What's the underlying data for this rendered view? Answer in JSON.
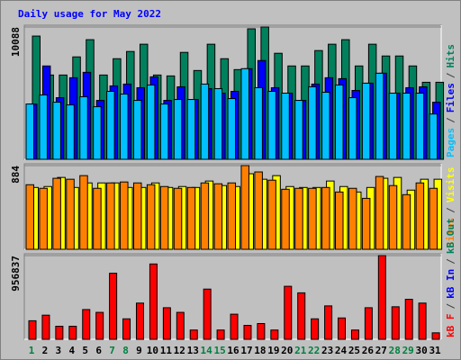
{
  "chart_data": [
    {
      "type": "bar",
      "title": "Daily usage for May 2022",
      "title_color": "#0000ff",
      "categories": [
        "1",
        "2",
        "3",
        "4",
        "5",
        "6",
        "7",
        "8",
        "9",
        "10",
        "11",
        "12",
        "13",
        "14",
        "15",
        "16",
        "17",
        "18",
        "19",
        "20",
        "21",
        "22",
        "23",
        "24",
        "25",
        "26",
        "27",
        "28",
        "29",
        "30",
        "31"
      ],
      "category_color": "#000000",
      "highlight_color": "#008040",
      "highlight_indices": [
        0,
        6,
        7,
        13,
        14,
        20,
        21,
        27,
        28
      ],
      "legend_separator": "/",
      "ylim": [
        0,
        10088
      ],
      "yticks": [
        10088
      ],
      "series": [
        {
          "name": "Hits",
          "color": "#00805c",
          "values": [
            9397,
            6426,
            6426,
            7808,
            9121,
            6426,
            7670,
            8222,
            8775,
            6426,
            6357,
            8153,
            6771,
            8775,
            7670,
            6840,
            9950,
            10088,
            8084,
            7117,
            7117,
            8291,
            8775,
            9121,
            7117,
            8775,
            7877,
            7877,
            7117,
            5873,
            5873
          ]
        },
        {
          "name": "Files",
          "color": "#0000ff",
          "values": [
            4215,
            7117,
            4698,
            6219,
            6633,
            4491,
            5597,
            5735,
            5459,
            6288,
            4491,
            5528,
            4560,
            5390,
            5044,
            5182,
            6910,
            7532,
            5459,
            5044,
            4491,
            5735,
            6219,
            6150,
            5251,
            5804,
            6564,
            5044,
            5459,
            5528,
            4353
          ]
        },
        {
          "name": "Pages",
          "color": "#00c0ff",
          "values": [
            4215,
            4905,
            4353,
            4146,
            4767,
            4008,
            5182,
            4974,
            4491,
            5666,
            4215,
            4560,
            4560,
            5735,
            5390,
            4629,
            6910,
            5459,
            5182,
            5044,
            4491,
            5528,
            5113,
            5666,
            4698,
            5804,
            6564,
            5044,
            5044,
            5044,
            3455
          ]
        }
      ]
    },
    {
      "type": "bar",
      "ylim": [
        0,
        884
      ],
      "yticks": [
        884
      ],
      "series": [
        {
          "name": "Visits",
          "color": "#ffff00",
          "values": [
            653,
            663,
            759,
            653,
            701,
            701,
            701,
            653,
            653,
            701,
            653,
            663,
            653,
            721,
            673,
            663,
            798,
            740,
            778,
            663,
            653,
            653,
            721,
            663,
            605,
            653,
            750,
            759,
            625,
            740,
            740
          ]
        },
        {
          "name": "Sites",
          "color": "#ff8000",
          "values": [
            682,
            644,
            750,
            740,
            778,
            644,
            701,
            711,
            701,
            682,
            663,
            644,
            653,
            701,
            692,
            701,
            884,
            817,
            730,
            634,
            644,
            644,
            653,
            605,
            644,
            538,
            769,
            673,
            577,
            701,
            644
          ]
        }
      ]
    },
    {
      "type": "bar",
      "ylim": [
        0,
        956837
      ],
      "yticks": [
        956837
      ],
      "series": [
        {
          "name": "kB F",
          "color": "#ff0000",
          "values": [
            212000,
            276000,
            149000,
            149000,
            340000,
            308000,
            755000,
            234000,
            414000,
            861000,
            361000,
            308000,
            106000,
            574000,
            106000,
            287000,
            159000,
            180000,
            106000,
            606000,
            531000,
            234000,
            382000,
            244000,
            106000,
            361000,
            956837,
            372000,
            457000,
            414000,
            74000
          ]
        }
      ],
      "extra_legend": [
        {
          "name": "kB In",
          "color": "#0000ff"
        },
        {
          "name": "kB Out",
          "color": "#00805c"
        }
      ]
    }
  ]
}
